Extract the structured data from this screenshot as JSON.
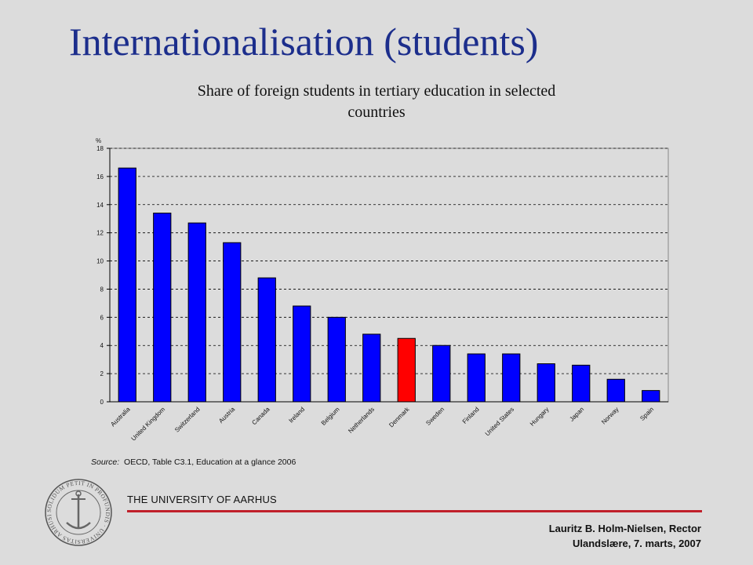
{
  "slide": {
    "title": "Internationalisation (students)",
    "university": "THE UNIVERSITY OF AARHUS",
    "author": "Lauritz B. Holm-Nielsen, Rector",
    "event": "Ulandslære, 7.  marts, 2007",
    "seal_text": "SOLIDUM PETIT IN PROFUNDIS · UNIVERSITAS ARHUSIENSIS"
  },
  "chart": {
    "title_line1": "Share of foreign students in tertiary education in selected",
    "title_line2": "countries",
    "source_label": "Source:",
    "source_text": "OECD, Table C3.1, Education at a glance 2006"
  },
  "chart_data": {
    "type": "bar",
    "title": "Share of foreign students in tertiary education in selected countries",
    "ylabel": "%",
    "xlabel": "",
    "ylim": [
      0,
      18
    ],
    "yticks": [
      0,
      2,
      4,
      6,
      8,
      10,
      12,
      14,
      16,
      18
    ],
    "grid": true,
    "categories": [
      "Australia",
      "United Kingdom",
      "Switzerland",
      "Austria",
      "Canada",
      "Ireland",
      "Belgium",
      "Netherlands",
      "Denmark",
      "Sweden",
      "Finland",
      "United States",
      "Hungary",
      "Japan",
      "Norway",
      "Spain"
    ],
    "values": [
      16.6,
      13.4,
      12.7,
      11.3,
      8.8,
      6.8,
      6.0,
      4.8,
      4.5,
      4.0,
      3.4,
      3.4,
      2.7,
      2.6,
      1.6,
      0.8
    ],
    "colors": {
      "default": "#0000ff",
      "highlight": "#ff0000",
      "highlight_category": "Denmark",
      "outline": "#000000"
    }
  }
}
